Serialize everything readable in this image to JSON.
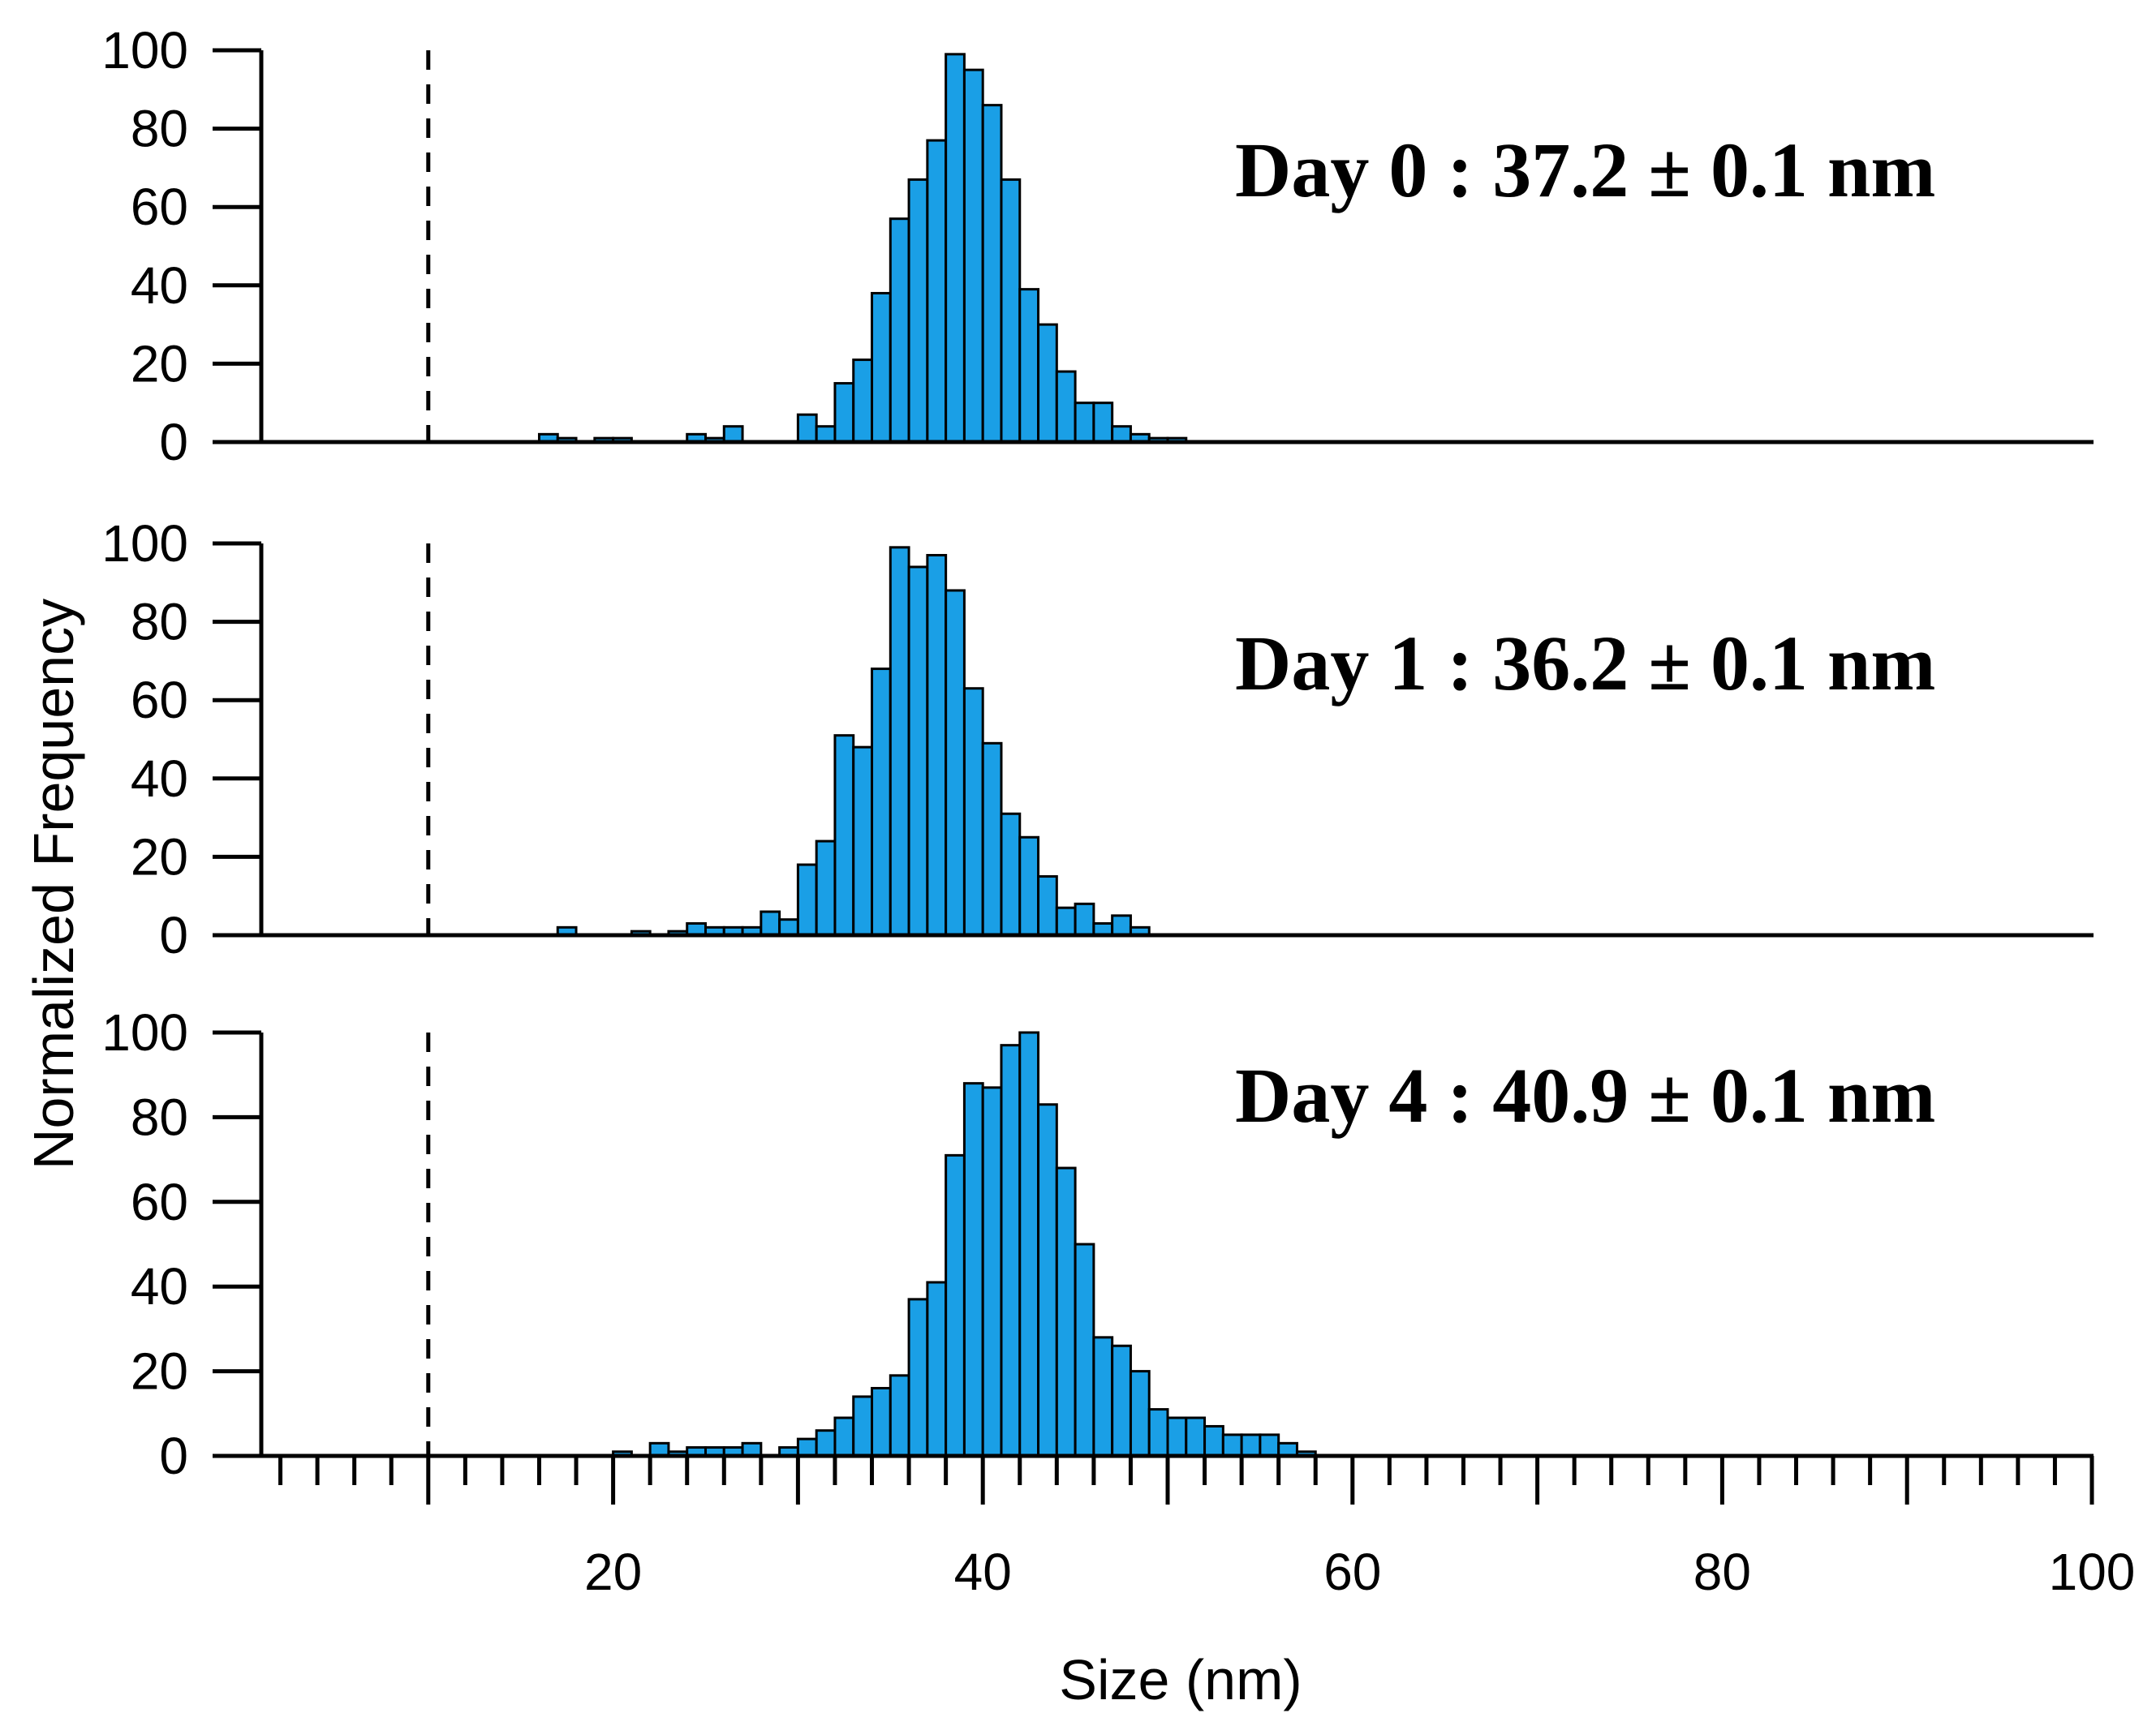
{
  "chart_data": {
    "type": "bar",
    "subtype": "stacked-histogram-panels",
    "xlabel": "Size (nm)",
    "ylabel": "Normalized Frequency",
    "xlim": [
      0,
      100
    ],
    "x_ticks": [
      20,
      40,
      60,
      80,
      100
    ],
    "y_ticks": [
      0,
      20,
      40,
      60,
      80,
      100
    ],
    "ylim": [
      0,
      100
    ],
    "bin_width": 1,
    "reference_line_x": 10,
    "panels": [
      {
        "name": "Day 0",
        "annotation": "Day 0 : 37.2 ± 0.1 nm",
        "x": [
          16,
          17,
          18,
          19,
          20,
          21,
          22,
          23,
          24,
          25,
          26,
          27,
          28,
          29,
          30,
          31,
          32,
          33,
          34,
          35,
          36,
          37,
          38,
          39,
          40,
          41,
          42,
          43,
          44,
          45,
          46,
          47,
          48,
          49,
          50,
          51
        ],
        "values": [
          2,
          1,
          0,
          1,
          1,
          0,
          0,
          0,
          2,
          1,
          4,
          0,
          0,
          0,
          7,
          4,
          15,
          21,
          38,
          57,
          67,
          77,
          99,
          95,
          86,
          67,
          39,
          30,
          18,
          10,
          10,
          4,
          2,
          1,
          1,
          0
        ]
      },
      {
        "name": "Day 1",
        "annotation": "Day 1 : 36.2 ± 0.1 nm",
        "x": [
          16,
          17,
          18,
          19,
          20,
          21,
          22,
          23,
          24,
          25,
          26,
          27,
          28,
          29,
          30,
          31,
          32,
          33,
          34,
          35,
          36,
          37,
          38,
          39,
          40,
          41,
          42,
          43,
          44,
          45,
          46,
          47,
          48,
          49,
          50
        ],
        "values": [
          0,
          2,
          0,
          0,
          0,
          1,
          0,
          1,
          3,
          2,
          2,
          2,
          6,
          4,
          18,
          24,
          51,
          48,
          68,
          99,
          94,
          97,
          88,
          63,
          49,
          31,
          25,
          15,
          7,
          8,
          3,
          5,
          2,
          0,
          0
        ]
      },
      {
        "name": "Day 4",
        "annotation": "Day 4 : 40.9 ± 0.1 nm",
        "x": [
          20,
          21,
          22,
          23,
          24,
          25,
          26,
          27,
          28,
          29,
          30,
          31,
          32,
          33,
          34,
          35,
          36,
          37,
          38,
          39,
          40,
          41,
          42,
          43,
          44,
          45,
          46,
          47,
          48,
          49,
          50,
          51,
          52,
          53,
          54,
          55,
          56,
          57
        ],
        "values": [
          1,
          0,
          3,
          1,
          2,
          2,
          2,
          3,
          0,
          2,
          4,
          6,
          9,
          14,
          16,
          19,
          37,
          41,
          71,
          88,
          87,
          97,
          100,
          83,
          68,
          50,
          28,
          26,
          20,
          11,
          9,
          9,
          7,
          5,
          5,
          5,
          3,
          1
        ]
      }
    ]
  }
}
